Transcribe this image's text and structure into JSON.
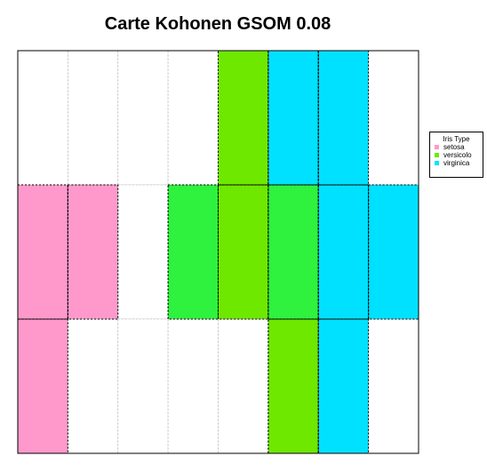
{
  "chart_data": {
    "type": "heatmap",
    "title": "Carte Kohonen GSOM 0.08",
    "grid": {
      "rows": 3,
      "cols": 8
    },
    "legend": {
      "title": "Iris Type",
      "placement": "right",
      "entries": [
        {
          "label": "setosa",
          "color": "#ff99cc"
        },
        {
          "label": "versicolo",
          "color": "#66ee00"
        },
        {
          "label": "virginica",
          "color": "#00e5ff"
        }
      ]
    },
    "cells": [
      [
        "",
        "",
        "",
        "",
        "versicolo",
        "virginica",
        "virginica",
        ""
      ],
      [
        "setosa",
        "setosa",
        "",
        "versicolo",
        "versicolo",
        "versicolo",
        "virginica",
        "virginica"
      ],
      [
        "setosa",
        "",
        "",
        "",
        "",
        "versicolo",
        "virginica",
        ""
      ]
    ],
    "cell_colors": [
      [
        "",
        "",
        "",
        "",
        "#6fe800",
        "#00e1ff",
        "#00e1ff",
        ""
      ],
      [
        "#ff99cc",
        "#ff99cc",
        "",
        "#2ef23e",
        "#6fe800",
        "#2ef23e",
        "#00e1ff",
        "#00e1ff"
      ],
      [
        "#ff99cc",
        "",
        "",
        "",
        "",
        "#6fe800",
        "#00e1ff",
        ""
      ]
    ]
  }
}
